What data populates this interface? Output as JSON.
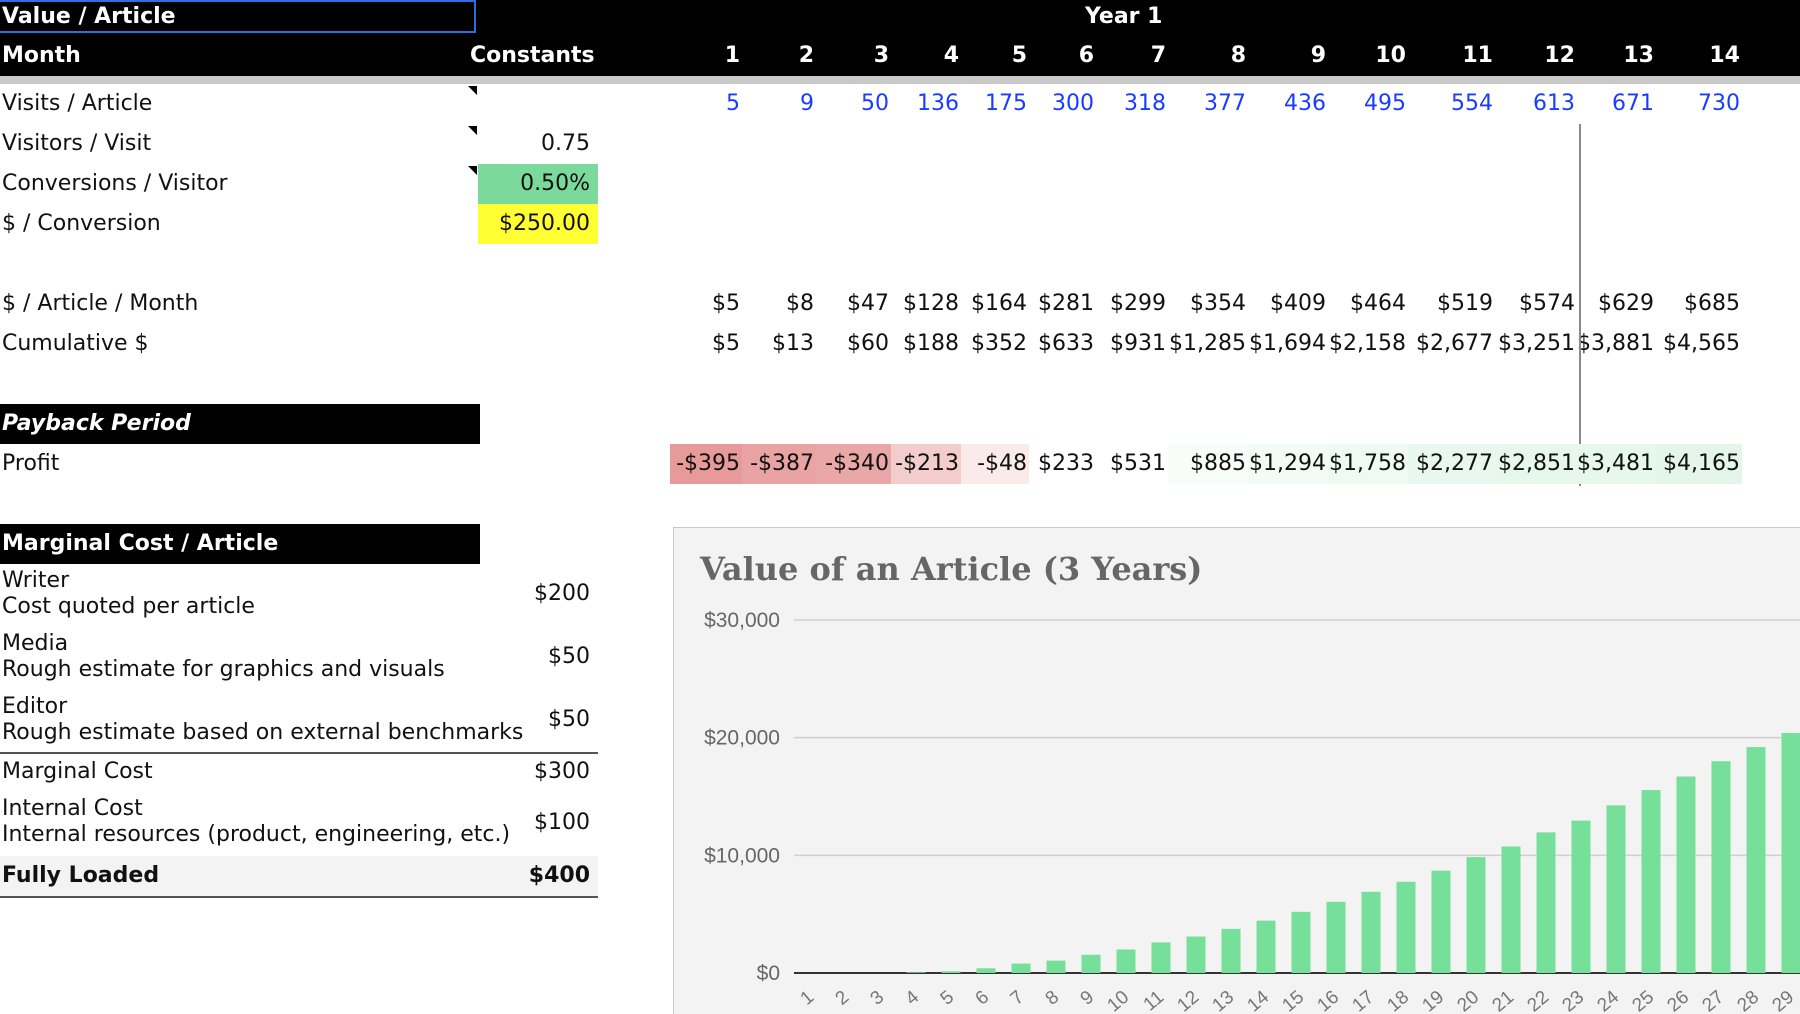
{
  "header": {
    "title": "Value / Article",
    "year_label": "Year 1",
    "month_label": "Month",
    "constants_label": "Constants",
    "months": [
      "1",
      "2",
      "3",
      "4",
      "5",
      "6",
      "7",
      "8",
      "9",
      "10",
      "11",
      "12",
      "13",
      "14"
    ]
  },
  "inputs": {
    "visits_label": "Visits / Article",
    "visits": [
      "5",
      "9",
      "50",
      "136",
      "175",
      "300",
      "318",
      "377",
      "436",
      "495",
      "554",
      "613",
      "671",
      "730"
    ],
    "visitors_label": "Visitors / Visit",
    "visitors_value": "0.75",
    "conversions_label": "Conversions / Visitor",
    "conversions_value": "0.50%",
    "dollar_conv_label": "$ / Conversion",
    "dollar_conv_value": "$250.00"
  },
  "revenue": {
    "per_month_label": "$ / Article / Month",
    "per_month": [
      "$5",
      "$8",
      "$47",
      "$128",
      "$164",
      "$281",
      "$299",
      "$354",
      "$409",
      "$464",
      "$519",
      "$574",
      "$629",
      "$685"
    ],
    "cumulative_label": "Cumulative $",
    "cumulative": [
      "$5",
      "$13",
      "$60",
      "$188",
      "$352",
      "$633",
      "$931",
      "$1,285",
      "$1,694",
      "$2,158",
      "$2,677",
      "$3,251",
      "$3,881",
      "$4,565"
    ]
  },
  "payback": {
    "section_label": "Payback Period",
    "profit_label": "Profit",
    "profit": [
      "-$395",
      "-$387",
      "-$340",
      "-$213",
      "-$48",
      "$233",
      "$531",
      "$885",
      "$1,294",
      "$1,758",
      "$2,277",
      "$2,851",
      "$3,481",
      "$4,165"
    ],
    "profit_colors": [
      "#e79a9a",
      "#e9a3a3",
      "#eaa7a7",
      "#f3cccc",
      "#fbeaea",
      "#ffffff",
      "#ffffff",
      "#f9fdfa",
      "#f2fbf5",
      "#eefaf2",
      "#e8f8ee",
      "#e6f7ec",
      "#e6f7ec",
      "#e4f6ea"
    ]
  },
  "marginal": {
    "section_label": "Marginal Cost / Article",
    "items": [
      {
        "name": "Writer",
        "note": "Cost quoted per article",
        "value": "$200"
      },
      {
        "name": "Media",
        "note": "Rough estimate for graphics and visuals",
        "value": "$50"
      },
      {
        "name": "Editor",
        "note": "Rough estimate based on external benchmarks",
        "value": "$50"
      }
    ],
    "marginal_label": "Marginal Cost",
    "marginal_value": "$300",
    "internal_name": "Internal Cost",
    "internal_note": "Internal resources (product, engineering, etc.)",
    "internal_value": "$100",
    "loaded_label": "Fully Loaded",
    "loaded_value": "$400"
  },
  "colors": {
    "green_input": "#7ad99b",
    "yellow_input": "#ffff33",
    "bar": "#76df9a",
    "link_blue": "#1a3cff"
  },
  "chart_data": {
    "type": "bar",
    "title": "Value of an Article (3 Years)",
    "y_ticks": [
      "$30,000",
      "$20,000",
      "$10,000",
      "$0"
    ],
    "ylim": [
      0,
      30000
    ],
    "categories": [
      "1",
      "2",
      "3",
      "4",
      "5",
      "6",
      "7",
      "8",
      "9",
      "10",
      "11",
      "12",
      "13",
      "14",
      "15",
      "16",
      "17",
      "18",
      "19",
      "20",
      "21",
      "22",
      "23",
      "24",
      "25",
      "26",
      "27",
      "28",
      "29"
    ],
    "values": [
      0,
      0,
      0,
      60,
      150,
      400,
      800,
      1050,
      1550,
      2000,
      2600,
      3100,
      3750,
      4450,
      5200,
      6050,
      6900,
      7750,
      8700,
      9850,
      10750,
      11950,
      12950,
      14250,
      15550,
      16700,
      18000,
      19200,
      20400
    ]
  }
}
